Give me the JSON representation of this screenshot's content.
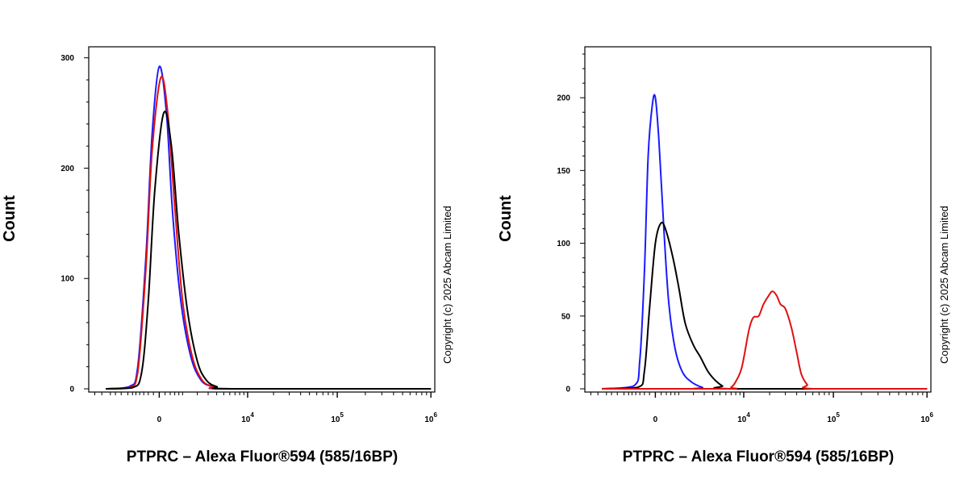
{
  "chart_data": [
    {
      "type": "line",
      "subtype": "flow-cytometry-histogram",
      "xlabel": "PTPRC – Alexa Fluor®594 (585/16BP)",
      "ylabel": "Count",
      "ylim": [
        0,
        310
      ],
      "y_ticks": [
        0,
        100,
        200,
        300
      ],
      "x_scale": "biexponential",
      "x_tick_labels": [
        {
          "value": 0,
          "base": "0",
          "exp": ""
        },
        {
          "value": 10000,
          "base": "10",
          "exp": "4"
        },
        {
          "value": 100000,
          "base": "10",
          "exp": "5"
        },
        {
          "value": 1000000,
          "base": "10",
          "exp": "6"
        }
      ],
      "copyright": "Copyright (c) 2025 Abcam Limited",
      "series": [
        {
          "name": "blue",
          "color": "#1a1aff",
          "points": [
            [
              -3500,
              0
            ],
            [
              -1400,
              2
            ],
            [
              -900,
              20
            ],
            [
              -500,
              120
            ],
            [
              -250,
              230
            ],
            [
              0,
              292
            ],
            [
              250,
              250
            ],
            [
              500,
              160
            ],
            [
              900,
              80
            ],
            [
              1500,
              30
            ],
            [
              2300,
              8
            ],
            [
              3500,
              2
            ],
            [
              6000,
              0
            ],
            [
              1000000,
              0
            ]
          ]
        },
        {
          "name": "red",
          "color": "#e01010",
          "points": [
            [
              -3500,
              0
            ],
            [
              -1400,
              1
            ],
            [
              -900,
              15
            ],
            [
              -500,
              110
            ],
            [
              -250,
              215
            ],
            [
              50,
              282
            ],
            [
              300,
              250
            ],
            [
              600,
              165
            ],
            [
              1000,
              80
            ],
            [
              1600,
              30
            ],
            [
              2400,
              8
            ],
            [
              3600,
              2
            ],
            [
              6000,
              0
            ],
            [
              1000000,
              0
            ]
          ]
        },
        {
          "name": "black",
          "color": "#000000",
          "points": [
            [
              -3500,
              0
            ],
            [
              -1200,
              1
            ],
            [
              -700,
              15
            ],
            [
              -400,
              80
            ],
            [
              -150,
              180
            ],
            [
              150,
              250
            ],
            [
              450,
              220
            ],
            [
              800,
              140
            ],
            [
              1300,
              70
            ],
            [
              2000,
              25
            ],
            [
              2800,
              8
            ],
            [
              4000,
              2
            ],
            [
              6500,
              0
            ],
            [
              1000000,
              0
            ]
          ]
        }
      ]
    },
    {
      "type": "line",
      "subtype": "flow-cytometry-histogram",
      "xlabel": "PTPRC – Alexa Fluor®594 (585/16BP)",
      "ylabel": "Count",
      "ylim": [
        0,
        235
      ],
      "y_ticks": [
        0,
        50,
        100,
        150,
        200
      ],
      "x_scale": "biexponential",
      "x_tick_labels": [
        {
          "value": 0,
          "base": "0",
          "exp": ""
        },
        {
          "value": 10000,
          "base": "10",
          "exp": "4"
        },
        {
          "value": 100000,
          "base": "10",
          "exp": "5"
        },
        {
          "value": 1000000,
          "base": "10",
          "exp": "6"
        }
      ],
      "copyright": "Copyright (c) 2025 Abcam Limited",
      "series": [
        {
          "name": "blue",
          "color": "#1a1aff",
          "points": [
            [
              -3500,
              0
            ],
            [
              -900,
              2
            ],
            [
              -600,
              20
            ],
            [
              -400,
              80
            ],
            [
              -250,
              160
            ],
            [
              -100,
              195
            ],
            [
              0,
              200
            ],
            [
              120,
              170
            ],
            [
              300,
              110
            ],
            [
              500,
              60
            ],
            [
              800,
              28
            ],
            [
              1200,
              12
            ],
            [
              1800,
              5
            ],
            [
              2800,
              1
            ],
            [
              4000,
              0
            ],
            [
              1000000,
              0
            ]
          ]
        },
        {
          "name": "black",
          "color": "#000000",
          "points": [
            [
              -3500,
              0
            ],
            [
              -700,
              1
            ],
            [
              -400,
              12
            ],
            [
              -200,
              55
            ],
            [
              0,
              100
            ],
            [
              200,
              114
            ],
            [
              400,
              108
            ],
            [
              700,
              90
            ],
            [
              1000,
              70
            ],
            [
              1400,
              45
            ],
            [
              2000,
              30
            ],
            [
              2600,
              22
            ],
            [
              3400,
              12
            ],
            [
              4300,
              6
            ],
            [
              5400,
              2
            ],
            [
              7000,
              0
            ],
            [
              1000000,
              0
            ]
          ]
        },
        {
          "name": "red",
          "color": "#e01010",
          "points": [
            [
              -3500,
              0
            ],
            [
              6000,
              0
            ],
            [
              7000,
              1
            ],
            [
              8000,
              5
            ],
            [
              9500,
              15
            ],
            [
              11500,
              40
            ],
            [
              13000,
              49
            ],
            [
              15000,
              50
            ],
            [
              17000,
              58
            ],
            [
              19500,
              64
            ],
            [
              21500,
              67
            ],
            [
              24000,
              64
            ],
            [
              26500,
              58
            ],
            [
              30000,
              55
            ],
            [
              35000,
              42
            ],
            [
              40000,
              25
            ],
            [
              45000,
              10
            ],
            [
              52000,
              3
            ],
            [
              60000,
              0
            ],
            [
              1000000,
              0
            ]
          ]
        }
      ]
    }
  ]
}
